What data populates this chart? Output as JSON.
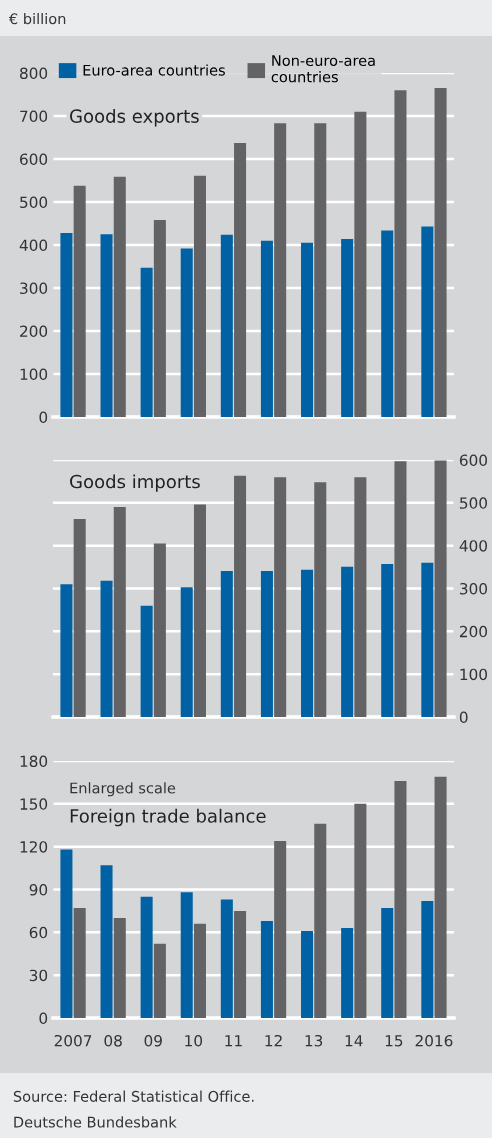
{
  "chart_data": [
    {
      "type": "bar",
      "title": "Goods exports",
      "ylabel": "€ billion",
      "categories": [
        "2007",
        "08",
        "09",
        "10",
        "11",
        "12",
        "13",
        "14",
        "15",
        "2016"
      ],
      "series": [
        {
          "name": "Euro-area countries",
          "color": "#0062a4",
          "values": [
            428,
            425,
            347,
            392,
            424,
            410,
            405,
            414,
            434,
            443
          ]
        },
        {
          "name": "Non-euro-area countries",
          "color": "#636365",
          "values": [
            538,
            559,
            458,
            561,
            637,
            683,
            683,
            710,
            760,
            765
          ]
        }
      ],
      "ylim": [
        0,
        800
      ],
      "yticks": [
        0,
        100,
        200,
        300,
        400,
        500,
        600,
        700,
        800
      ],
      "grid": "y",
      "legend": "top left",
      "tick_labels": "y"
    },
    {
      "type": "bar",
      "title": "Goods imports",
      "categories": [
        "2007",
        "08",
        "09",
        "10",
        "11",
        "12",
        "13",
        "14",
        "15",
        "2016"
      ],
      "series": [
        {
          "color": "#0062a4",
          "axis": "y2",
          "values": [
            310,
            318,
            260,
            303,
            341,
            341,
            344,
            351,
            357,
            360
          ]
        },
        {
          "color": "#636365",
          "axis": "y2",
          "values": [
            462,
            490,
            405,
            496,
            563,
            560,
            548,
            560,
            597,
            599
          ]
        }
      ],
      "y2lim": [
        0,
        600
      ],
      "y2ticks": [
        0,
        100,
        200,
        300,
        400,
        500,
        600
      ],
      "grid": "y",
      "tick_labels": "y"
    },
    {
      "type": "bar",
      "title": "Foreign trade balance",
      "subtitle": "Enlarged scale",
      "categories": [
        "2007",
        "08",
        "09",
        "10",
        "11",
        "12",
        "13",
        "14",
        "15",
        "2016"
      ],
      "series": [
        {
          "color": "#0062a4",
          "values": [
            118,
            107,
            85,
            88,
            83,
            68,
            61,
            63,
            77,
            82
          ]
        },
        {
          "color": "#636365",
          "values": [
            77,
            70,
            52,
            66,
            75,
            124,
            136,
            150,
            166,
            169
          ]
        }
      ],
      "ylim": [
        0,
        180
      ],
      "yticks": [
        0,
        30,
        60,
        90,
        120,
        150,
        180
      ],
      "grid": "y",
      "annotations": [
        "Source: Federal Statistical Office.",
        "Deutsche Bundesbank"
      ]
    }
  ]
}
